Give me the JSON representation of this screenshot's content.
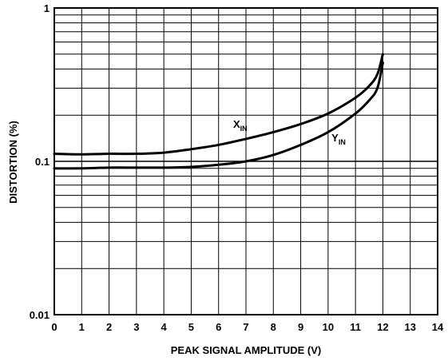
{
  "chart_data": {
    "type": "line",
    "title": "",
    "xlabel": "PEAK SIGNAL AMPLITUDE (V)",
    "ylabel": "DISTORTION (%)",
    "xlim": [
      0,
      14
    ],
    "ylim": [
      0.01,
      1
    ],
    "yscale": "log",
    "grid": true,
    "x_ticks": [
      "0",
      "1",
      "2",
      "3",
      "4",
      "5",
      "6",
      "7",
      "8",
      "9",
      "10",
      "11",
      "12",
      "13",
      "14"
    ],
    "y_ticks": [
      "0.01",
      "0.1",
      "1"
    ],
    "series": [
      {
        "name": "X",
        "subscript": "IN",
        "x": [
          0,
          1,
          2,
          3,
          4,
          5,
          6,
          7,
          8,
          9,
          10,
          11,
          11.5,
          11.8,
          12
        ],
        "y": [
          0.112,
          0.111,
          0.112,
          0.112,
          0.114,
          0.12,
          0.128,
          0.14,
          0.155,
          0.175,
          0.205,
          0.26,
          0.31,
          0.37,
          0.5
        ]
      },
      {
        "name": "Y",
        "subscript": "IN",
        "x": [
          0,
          1,
          2,
          3,
          4,
          5,
          6,
          7,
          8,
          9,
          10,
          11,
          11.5,
          11.8,
          12
        ],
        "y": [
          0.09,
          0.09,
          0.091,
          0.091,
          0.091,
          0.092,
          0.095,
          0.1,
          0.11,
          0.128,
          0.155,
          0.205,
          0.25,
          0.3,
          0.44
        ]
      }
    ]
  }
}
